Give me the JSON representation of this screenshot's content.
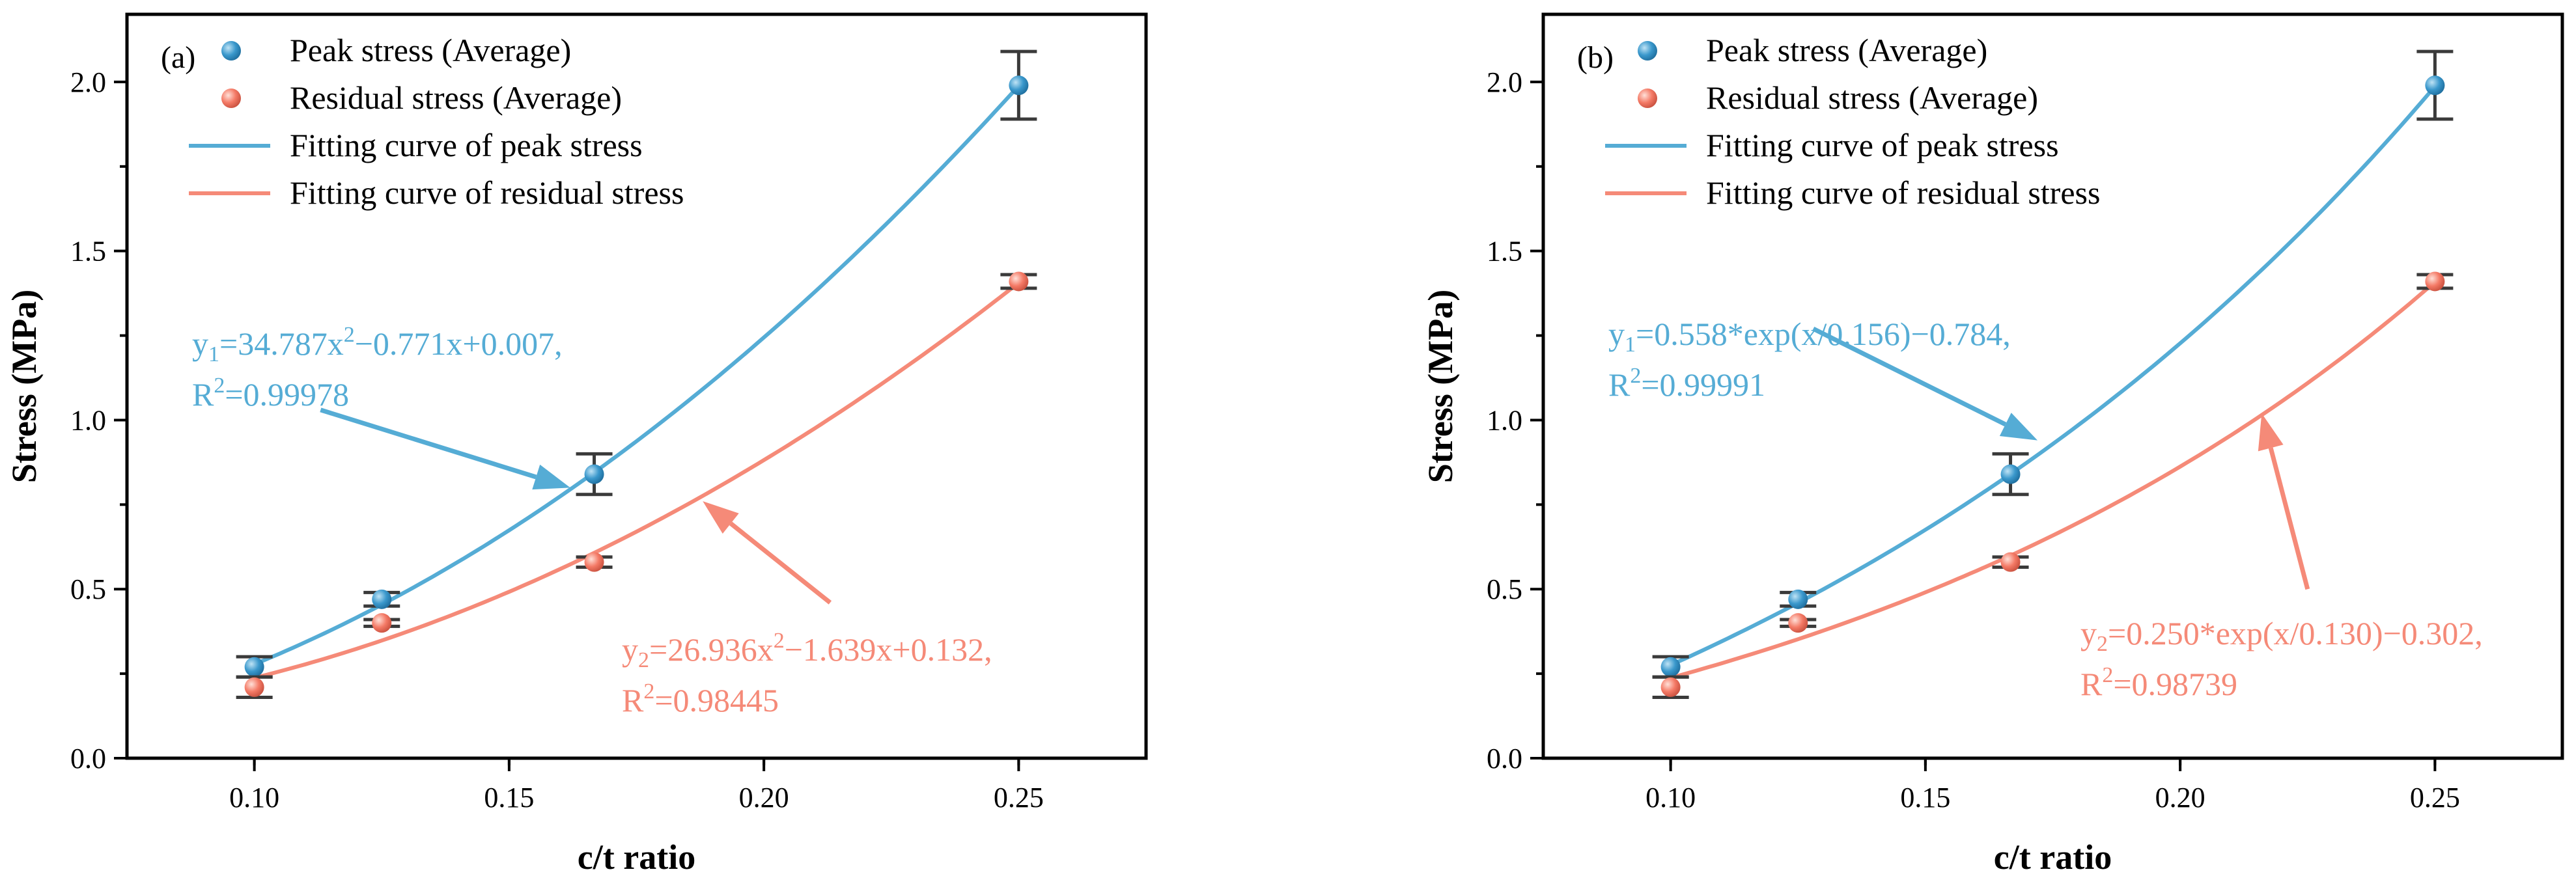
{
  "colors": {
    "peak": "#55acd5",
    "peak_marker": "#2f8fc4",
    "residual": "#f58a78",
    "residual_marker": "#f47a66",
    "errbar": "#3a3a3a"
  },
  "chart_data": [
    {
      "type": "scatter",
      "panel_label": "(a)",
      "xlabel": "c/t ratio",
      "ylabel": "Stress (MPa)",
      "xlim": [
        0.075,
        0.275
      ],
      "ylim": [
        0,
        2.2
      ],
      "xticks": [
        0.1,
        0.15,
        0.2,
        0.25
      ],
      "xtick_labels": [
        "0.10",
        "0.15",
        "0.20",
        "0.25"
      ],
      "yticks": [
        0.0,
        0.5,
        1.0,
        1.5,
        2.0
      ],
      "ytick_labels": [
        "0.0",
        "0.5",
        "1.0",
        "1.5",
        "2.0"
      ],
      "legend": {
        "position": "top-left",
        "entries": [
          "Peak stress (Average)",
          "Residual stress (Average)",
          "Fitting curve of peak stress",
          "Fitting curve of residual stress"
        ]
      },
      "series": [
        {
          "name": "Peak stress (Average)",
          "x": [
            0.1,
            0.125,
            0.1667,
            0.25
          ],
          "y": [
            0.27,
            0.47,
            0.84,
            1.99
          ],
          "err": [
            0.03,
            0.02,
            0.06,
            0.1
          ]
        },
        {
          "name": "Residual stress (Average)",
          "x": [
            0.1,
            0.125,
            0.1667,
            0.25
          ],
          "y": [
            0.21,
            0.4,
            0.58,
            1.41
          ],
          "err": [
            0.03,
            0.01,
            0.015,
            0.02
          ]
        }
      ],
      "fits": [
        {
          "name": "Fitting curve of peak stress",
          "model": "poly2",
          "a": 34.787,
          "b": -0.771,
          "c": 0.007,
          "sub": "1",
          "eq_line1": "=34.787x",
          "eq_exp": "2",
          "eq_line1_end": "−0.771x+0.007,",
          "r2_label": "R",
          "r2_value": "=0.99978",
          "arrow_from": [
            0.113,
            1.03
          ],
          "arrow_to": [
            0.162,
            0.8
          ]
        },
        {
          "name": "Fitting curve of residual stress",
          "model": "poly2",
          "a": 26.936,
          "b": -1.639,
          "c": 0.132,
          "sub": "2",
          "eq_line1": "=26.936x",
          "eq_exp": "2",
          "eq_line1_end": "−1.639x+0.132,",
          "r2_label": "R",
          "r2_value": "=0.98445",
          "arrow_from": [
            0.213,
            0.46
          ],
          "arrow_to": [
            0.188,
            0.76
          ]
        }
      ]
    },
    {
      "type": "scatter",
      "panel_label": "(b)",
      "xlabel": "c/t ratio",
      "ylabel": "Stress (MPa)",
      "xlim": [
        0.075,
        0.275
      ],
      "ylim": [
        0,
        2.2
      ],
      "xticks": [
        0.1,
        0.15,
        0.2,
        0.25
      ],
      "xtick_labels": [
        "0.10",
        "0.15",
        "0.20",
        "0.25"
      ],
      "yticks": [
        0.0,
        0.5,
        1.0,
        1.5,
        2.0
      ],
      "ytick_labels": [
        "0.0",
        "0.5",
        "1.0",
        "1.5",
        "2.0"
      ],
      "legend": {
        "position": "top-left",
        "entries": [
          "Peak stress (Average)",
          "Residual stress (Average)",
          "Fitting curve of peak stress",
          "Fitting curve of residual stress"
        ]
      },
      "series": [
        {
          "name": "Peak stress (Average)",
          "x": [
            0.1,
            0.125,
            0.1667,
            0.25
          ],
          "y": [
            0.27,
            0.47,
            0.84,
            1.99
          ],
          "err": [
            0.03,
            0.02,
            0.06,
            0.1
          ]
        },
        {
          "name": "Residual stress (Average)",
          "x": [
            0.1,
            0.125,
            0.1667,
            0.25
          ],
          "y": [
            0.21,
            0.4,
            0.58,
            1.41
          ],
          "err": [
            0.03,
            0.01,
            0.015,
            0.02
          ]
        }
      ],
      "fits": [
        {
          "name": "Fitting curve of peak stress",
          "model": "exp",
          "a": 0.558,
          "t": 0.156,
          "c": -0.784,
          "sub": "1",
          "eq_line1": "=0.558*exp(x/0.156)−0.784,",
          "eq_exp": "",
          "eq_line1_end": "",
          "r2_label": "R",
          "r2_value": "=0.99991",
          "arrow_from": [
            0.128,
            1.27
          ],
          "arrow_to": [
            0.172,
            0.94
          ]
        },
        {
          "name": "Fitting curve of residual stress",
          "model": "exp",
          "a": 0.25,
          "t": 0.13,
          "c": -0.302,
          "sub": "2",
          "eq_line1": "=0.250*exp(x/0.130)−0.302,",
          "eq_exp": "",
          "eq_line1_end": "",
          "r2_label": "R",
          "r2_value": "=0.98739",
          "arrow_from": [
            0.225,
            0.5
          ],
          "arrow_to": [
            0.216,
            1.02
          ]
        }
      ]
    }
  ]
}
